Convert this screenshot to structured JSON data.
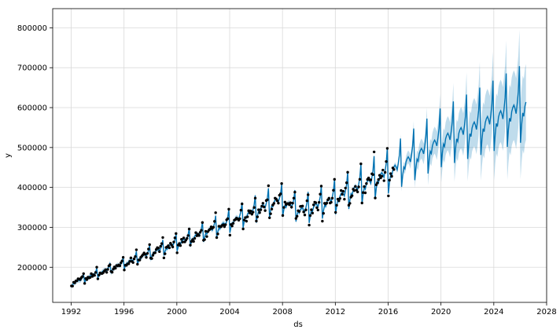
{
  "chart_data": {
    "type": "line",
    "title": "",
    "xlabel": "ds",
    "ylabel": "y",
    "xlim": [
      1990.6,
      2028.0
    ],
    "ylim": [
      112000,
      848000
    ],
    "grid": true,
    "x_ticks": [
      1992,
      1996,
      2000,
      2004,
      2008,
      2012,
      2016,
      2020,
      2024,
      2028
    ],
    "y_ticks": [
      200000,
      300000,
      400000,
      500000,
      600000,
      700000,
      800000
    ],
    "x_tick_labels": [
      "1992",
      "1996",
      "2000",
      "2004",
      "2008",
      "2012",
      "2016",
      "2020",
      "2024",
      "2028"
    ],
    "y_tick_labels": [
      "200000",
      "300000",
      "400000",
      "500000",
      "600000",
      "700000",
      "800000"
    ],
    "history_range": [
      1992.0,
      2016.4
    ],
    "forecast_end": 2026.4,
    "trend_anchors": [
      {
        "x": 1992.0,
        "y": 160000
      },
      {
        "x": 2000.0,
        "y": 262000
      },
      {
        "x": 2004.0,
        "y": 316000
      },
      {
        "x": 2007.7,
        "y": 372000
      },
      {
        "x": 2009.6,
        "y": 345000
      },
      {
        "x": 2012.0,
        "y": 377000
      },
      {
        "x": 2016.0,
        "y": 442000
      },
      {
        "x": 2020.0,
        "y": 525000
      },
      {
        "x": 2024.0,
        "y": 580000
      },
      {
        "x": 2026.4,
        "y": 614000
      }
    ],
    "seasonal_amplitude": {
      "start": 0.06,
      "end": 0.16
    },
    "december_peak_factor": 0.2,
    "january_drop_factor": 0.2,
    "uncertainty_band": {
      "start": 6000,
      "end": 95000
    },
    "colors": {
      "forecast_line": "#0072b2",
      "uncertainty_band": "#0072b2",
      "observed_points": "#000000",
      "grid": "#d9d9d9",
      "axis": "#000000",
      "text": "#000000"
    },
    "series": [
      {
        "role": "observed"
      },
      {
        "role": "forecast"
      },
      {
        "role": "uncertainty"
      }
    ]
  }
}
